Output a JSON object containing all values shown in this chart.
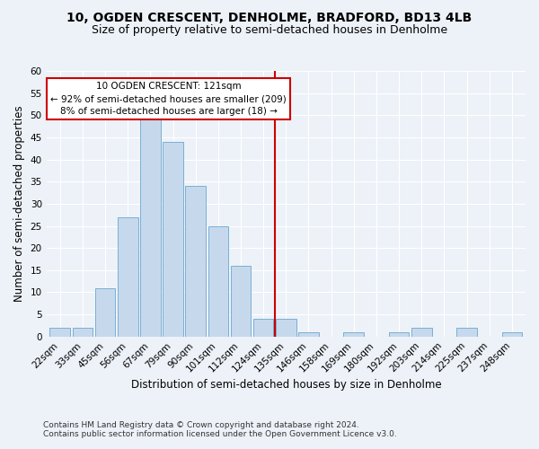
{
  "title": "10, OGDEN CRESCENT, DENHOLME, BRADFORD, BD13 4LB",
  "subtitle": "Size of property relative to semi-detached houses in Denholme",
  "xlabel": "Distribution of semi-detached houses by size in Denholme",
  "ylabel": "Number of semi-detached properties",
  "bar_labels": [
    "22sqm",
    "33sqm",
    "45sqm",
    "56sqm",
    "67sqm",
    "79sqm",
    "90sqm",
    "101sqm",
    "112sqm",
    "124sqm",
    "135sqm",
    "146sqm",
    "158sqm",
    "169sqm",
    "180sqm",
    "192sqm",
    "203sqm",
    "214sqm",
    "225sqm",
    "237sqm",
    "248sqm"
  ],
  "bar_values": [
    2,
    2,
    11,
    27,
    50,
    44,
    34,
    25,
    16,
    4,
    4,
    1,
    0,
    1,
    0,
    1,
    2,
    0,
    2,
    0,
    1
  ],
  "bar_color": "#c6d9ec",
  "bar_edge_color": "#7aafd4",
  "annotation_text": "10 OGDEN CRESCENT: 121sqm\n← 92% of semi-detached houses are smaller (209)\n8% of semi-detached houses are larger (18) →",
  "annotation_box_color": "#ffffff",
  "annotation_box_edge": "#cc0000",
  "vline_color": "#cc0000",
  "vline_x": 9.5,
  "ylim": [
    0,
    60
  ],
  "yticks": [
    0,
    5,
    10,
    15,
    20,
    25,
    30,
    35,
    40,
    45,
    50,
    55,
    60
  ],
  "footer_line1": "Contains HM Land Registry data © Crown copyright and database right 2024.",
  "footer_line2": "Contains public sector information licensed under the Open Government Licence v3.0.",
  "bg_color": "#edf2f8",
  "grid_color": "#ffffff",
  "title_fontsize": 10,
  "subtitle_fontsize": 9,
  "axis_label_fontsize": 8.5,
  "tick_fontsize": 7.5,
  "annotation_fontsize": 7.5,
  "footer_fontsize": 6.5
}
